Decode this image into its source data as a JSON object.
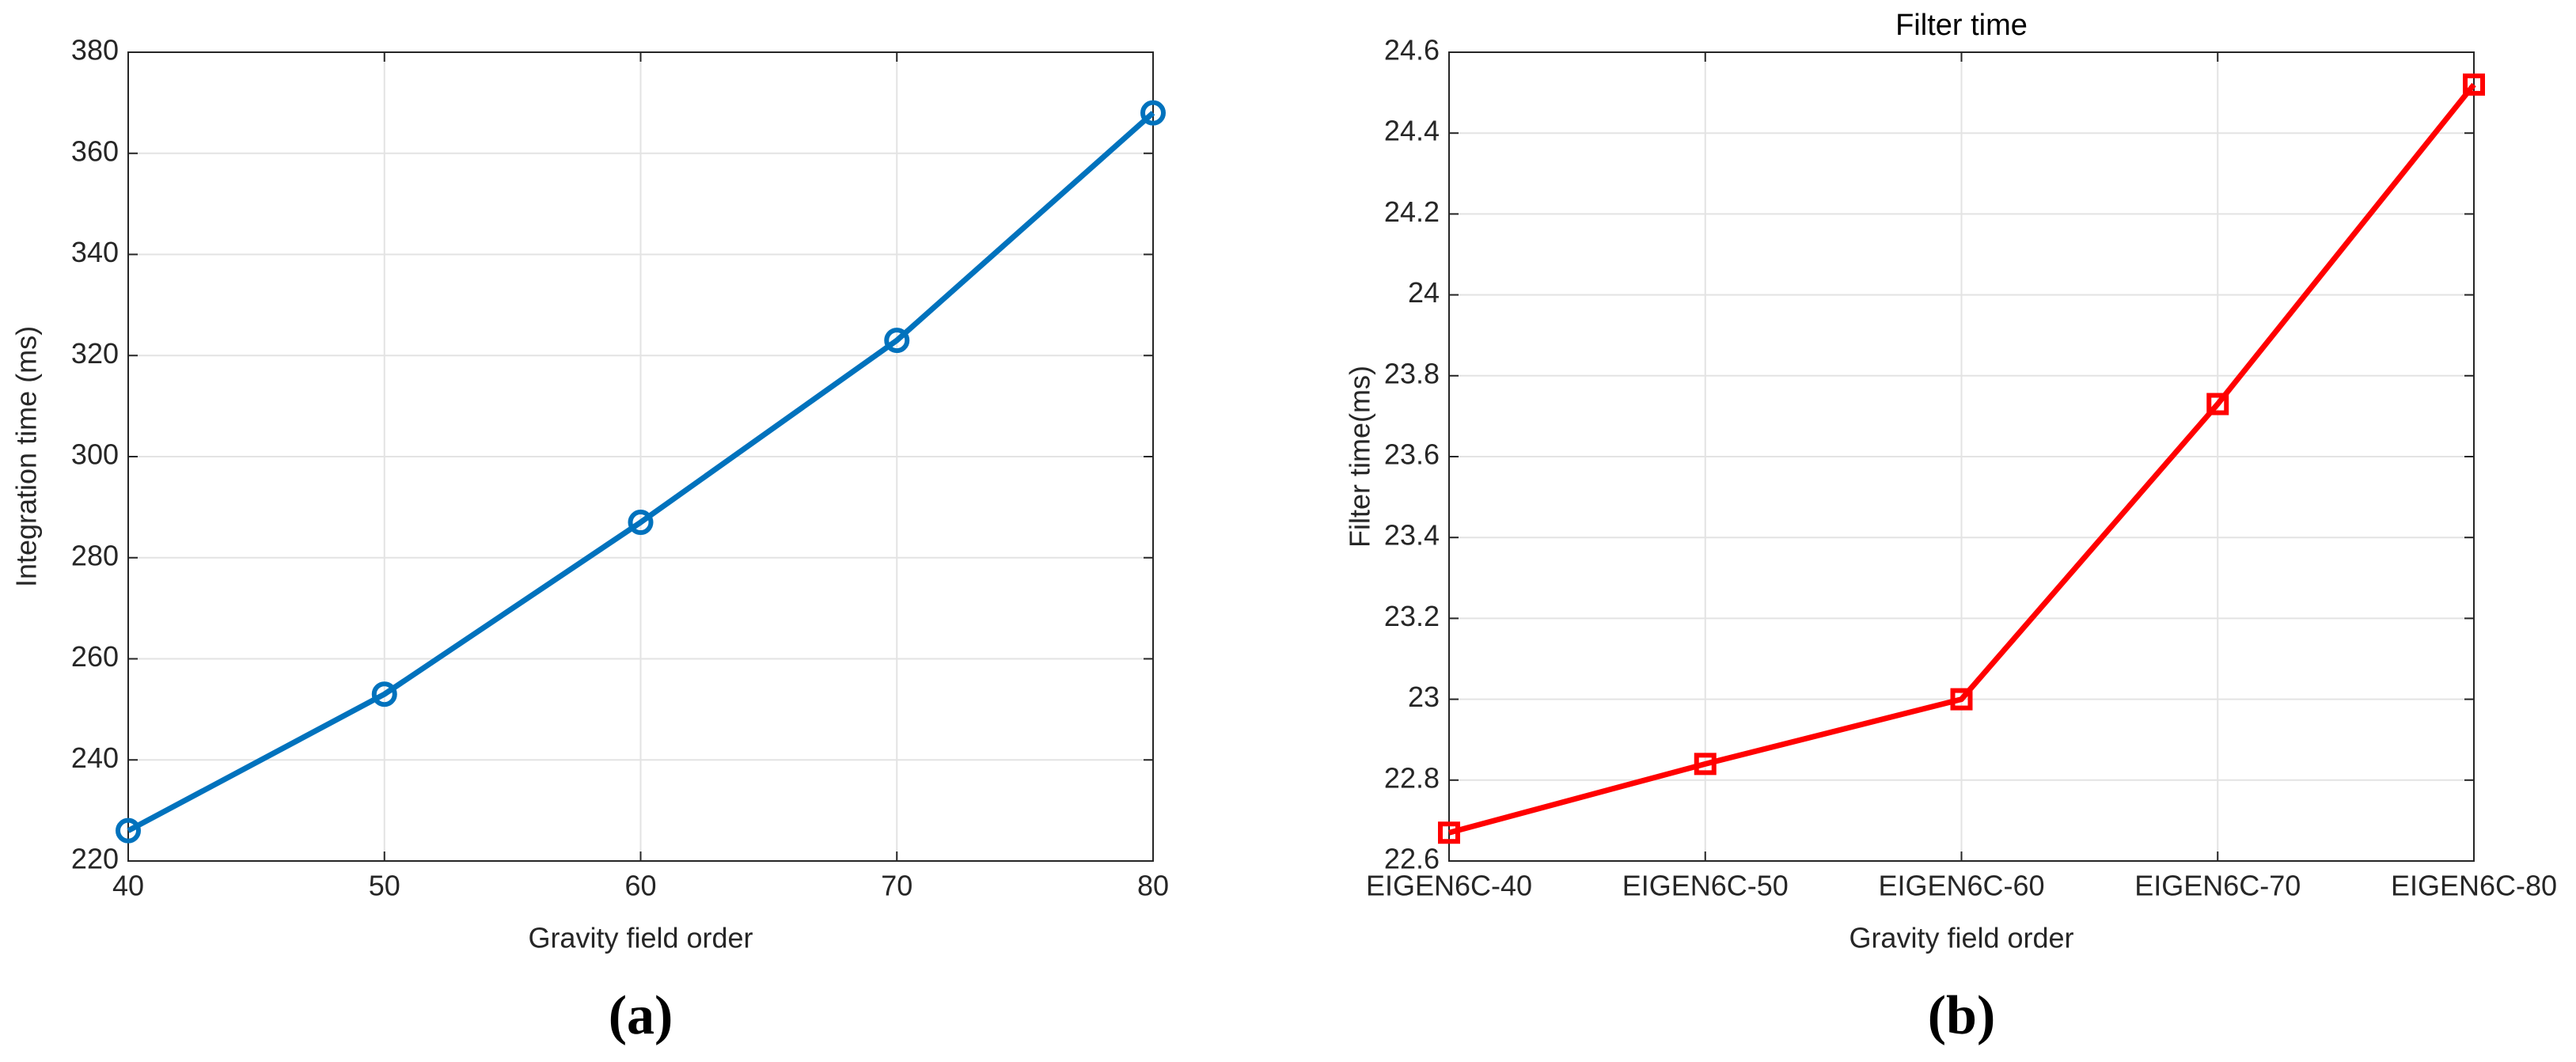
{
  "chart_data": [
    {
      "type": "line",
      "xlabel": "Gravity field order",
      "ylabel": "Integration time (ms)",
      "caption": "(a)",
      "x": [
        40,
        50,
        60,
        70,
        80
      ],
      "values": [
        226,
        253,
        287,
        323,
        368
      ],
      "color": "#0072bd",
      "marker": "circle",
      "xlim": [
        40,
        80
      ],
      "xticks": [
        40,
        50,
        60,
        70,
        80
      ],
      "ylim": [
        220,
        380
      ],
      "yticks": [
        220,
        240,
        260,
        280,
        300,
        320,
        340,
        360,
        380
      ],
      "grid": true
    },
    {
      "type": "line",
      "title": "Filter time",
      "xlabel": "Gravity field order",
      "ylabel": "Filter time(ms)",
      "caption": "(b)",
      "categories": [
        "EIGEN6C-40",
        "EIGEN6C-50",
        "EIGEN6C-60",
        "EIGEN6C-70",
        "EIGEN6C-80"
      ],
      "values": [
        22.67,
        22.84,
        23.0,
        23.73,
        24.52
      ],
      "color": "#ff0000",
      "marker": "square",
      "ylim": [
        22.6,
        24.6
      ],
      "yticks": [
        22.6,
        22.8,
        23,
        23.2,
        23.4,
        23.6,
        23.8,
        24,
        24.2,
        24.4,
        24.6
      ],
      "grid": true
    }
  ]
}
